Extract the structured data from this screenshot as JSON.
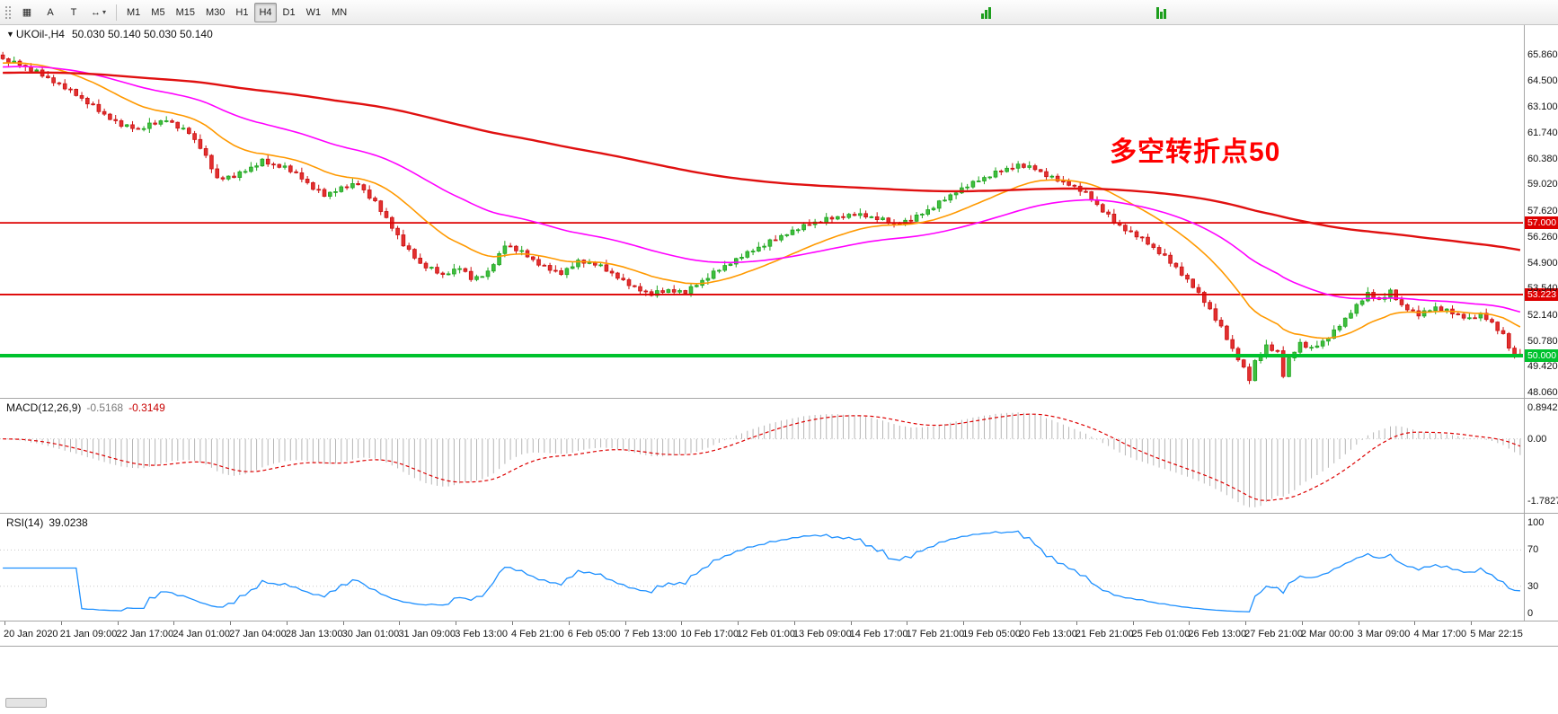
{
  "toolbar": {
    "left_icons": [
      {
        "name": "tile-windows-icon",
        "glyph": "▦"
      },
      {
        "name": "text-label-icon",
        "glyph": "A"
      },
      {
        "name": "trendline-tool-icon",
        "glyph": "T"
      },
      {
        "name": "indicators-icon",
        "glyph": "↔",
        "caret": "▾"
      }
    ],
    "timeframes": [
      "M1",
      "M5",
      "M15",
      "M30",
      "H1",
      "H4",
      "D1",
      "W1",
      "MN"
    ],
    "active_timeframe": "H4"
  },
  "main_chart": {
    "symbol_label": "UKOil-,H4",
    "ohlc_label": "50.030 50.140 50.030 50.140",
    "annotation": "多空转折点50"
  },
  "macd_panel": {
    "name_label": "MACD(12,26,9)",
    "value_main": "-0.5168",
    "value_signal": "-0.3149"
  },
  "rsi_panel": {
    "name_label": "RSI(14)",
    "value": "39.0238"
  },
  "colors": {
    "bull": "#1fa51f",
    "bull_fill": "#3fbf3f",
    "bear": "#cc1111",
    "bear_fill": "#e23030",
    "hist": "#b5b5b5",
    "signal": "#dd0000",
    "rsi_line": "#1e90ff",
    "level_dotted": "#c9c9c9",
    "annotation": "#ff0000"
  },
  "chart_data": {
    "type": "candlestick",
    "title": "UKOil-,H4",
    "symbol": "UKOil",
    "timeframe": "H4",
    "bars": 270,
    "y_axis": {
      "min": 48.06,
      "max": 65.86,
      "ticks": [
        {
          "v": 65.86,
          "label": "65.860"
        },
        {
          "v": 64.5,
          "label": "64.500"
        },
        {
          "v": 63.1,
          "label": "63.100"
        },
        {
          "v": 61.74,
          "label": "61.740"
        },
        {
          "v": 60.38,
          "label": "60.380"
        },
        {
          "v": 59.02,
          "label": "59.020"
        },
        {
          "v": 57.62,
          "label": "57.620"
        },
        {
          "v": 56.26,
          "label": "56.260"
        },
        {
          "v": 54.9,
          "label": "54.900"
        },
        {
          "v": 53.54,
          "label": "53.540"
        },
        {
          "v": 52.14,
          "label": "52.140"
        },
        {
          "v": 50.78,
          "label": "50.780"
        },
        {
          "v": 49.42,
          "label": "49.420"
        },
        {
          "v": 48.06,
          "label": "48.060"
        }
      ]
    },
    "x_axis": {
      "labels": [
        "20 Jan 2020",
        "21 Jan 09:00",
        "22 Jan 17:00",
        "24 Jan 01:00",
        "27 Jan 04:00",
        "28 Jan 13:00",
        "30 Jan 01:00",
        "31 Jan 09:00",
        "3 Feb 13:00",
        "4 Feb 21:00",
        "6 Feb 05:00",
        "7 Feb 13:00",
        "10 Feb 17:00",
        "12 Feb 01:00",
        "13 Feb 09:00",
        "14 Feb 17:00",
        "17 Feb 21:00",
        "19 Feb 05:00",
        "20 Feb 13:00",
        "21 Feb 21:00",
        "25 Feb 01:00",
        "26 Feb 13:00",
        "27 Feb 21:00",
        "2 Mar 00:00",
        "3 Mar 09:00",
        "4 Mar 17:00",
        "5 Mar 22:15"
      ]
    },
    "close_keypoints": [
      [
        0,
        65.6
      ],
      [
        3,
        65.35
      ],
      [
        6,
        64.95
      ],
      [
        9,
        64.45
      ],
      [
        12,
        63.95
      ],
      [
        15,
        63.35
      ],
      [
        18,
        62.7
      ],
      [
        21,
        62.15
      ],
      [
        24,
        61.95
      ],
      [
        27,
        62.25
      ],
      [
        29,
        62.45
      ],
      [
        31,
        62.05
      ],
      [
        33,
        61.75
      ],
      [
        35,
        61.0
      ],
      [
        38,
        59.35
      ],
      [
        41,
        59.45
      ],
      [
        43,
        59.75
      ],
      [
        46,
        60.25
      ],
      [
        48,
        60.05
      ],
      [
        50,
        59.95
      ],
      [
        53,
        59.35
      ],
      [
        55,
        58.85
      ],
      [
        57,
        58.45
      ],
      [
        60,
        58.85
      ],
      [
        63,
        59.05
      ],
      [
        66,
        58.05
      ],
      [
        68,
        57.25
      ],
      [
        71,
        55.85
      ],
      [
        74,
        54.85
      ],
      [
        78,
        54.25
      ],
      [
        81,
        54.65
      ],
      [
        83,
        54.05
      ],
      [
        86,
        54.35
      ],
      [
        89,
        55.85
      ],
      [
        92,
        55.45
      ],
      [
        96,
        54.65
      ],
      [
        99,
        54.35
      ],
      [
        102,
        54.95
      ],
      [
        105,
        54.85
      ],
      [
        109,
        54.15
      ],
      [
        112,
        53.55
      ],
      [
        115,
        53.25
      ],
      [
        118,
        53.45
      ],
      [
        121,
        53.35
      ],
      [
        124,
        53.95
      ],
      [
        127,
        54.55
      ],
      [
        131,
        55.25
      ],
      [
        135,
        55.85
      ],
      [
        139,
        56.45
      ],
      [
        143,
        56.95
      ],
      [
        147,
        57.25
      ],
      [
        151,
        57.45
      ],
      [
        155,
        57.25
      ],
      [
        158,
        56.95
      ],
      [
        161,
        57.15
      ],
      [
        165,
        57.85
      ],
      [
        169,
        58.65
      ],
      [
        173,
        59.25
      ],
      [
        177,
        59.75
      ],
      [
        180,
        60.05
      ],
      [
        183,
        59.85
      ],
      [
        186,
        59.35
      ],
      [
        189,
        59.05
      ],
      [
        192,
        58.55
      ],
      [
        195,
        57.65
      ],
      [
        197,
        57.05
      ],
      [
        199,
        56.65
      ],
      [
        202,
        56.15
      ],
      [
        205,
        55.45
      ],
      [
        208,
        54.65
      ],
      [
        211,
        53.65
      ],
      [
        214,
        52.45
      ],
      [
        216,
        51.45
      ],
      [
        218,
        50.35
      ],
      [
        220,
        49.35
      ],
      [
        221,
        48.75
      ],
      [
        222,
        49.65
      ],
      [
        224,
        50.55
      ],
      [
        226,
        50.15
      ],
      [
        227,
        48.95
      ],
      [
        228,
        49.85
      ],
      [
        230,
        50.65
      ],
      [
        232,
        50.35
      ],
      [
        234,
        50.75
      ],
      [
        236,
        51.25
      ],
      [
        238,
        51.95
      ],
      [
        240,
        52.65
      ],
      [
        242,
        53.25
      ],
      [
        244,
        52.95
      ],
      [
        246,
        53.35
      ],
      [
        248,
        52.65
      ],
      [
        251,
        52.15
      ],
      [
        254,
        52.55
      ],
      [
        257,
        52.25
      ],
      [
        260,
        51.95
      ],
      [
        262,
        52.15
      ],
      [
        264,
        51.75
      ],
      [
        266,
        51.05
      ],
      [
        267,
        50.45
      ],
      [
        268,
        50.05
      ],
      [
        269,
        50.1
      ]
    ],
    "jitter": [
      0.05,
      -0.06,
      0.09,
      -0.04,
      0.02,
      -0.08,
      0.11,
      -0.05,
      0.03,
      -0.07
    ],
    "wick_up": [
      0.16,
      0.06,
      0.24,
      0.1,
      0.04,
      0.19,
      0.08,
      0.13,
      0.27
    ],
    "wick_dn": [
      0.07,
      0.19,
      0.05,
      0.15,
      0.23,
      0.06,
      0.12,
      0.09,
      0.04,
      0.17,
      0.1
    ],
    "moving_averages": [
      {
        "name": "ma-fast",
        "period": 20,
        "seed": 65.4,
        "color": "#ff9900",
        "width": 1.6
      },
      {
        "name": "ma-mid",
        "period": 55,
        "seed": 65.2,
        "color": "#ff00ff",
        "width": 1.6
      },
      {
        "name": "ma-slow",
        "period": 220,
        "seed": 64.9,
        "color": "#e01010",
        "width": 2.4
      }
    ],
    "hlines": [
      {
        "price": 57.0,
        "badge": "57.000",
        "color": "#dd0000",
        "width": 1.8
      },
      {
        "price": 53.223,
        "badge": "53.223",
        "color": "#dd0000",
        "width": 1.8
      },
      {
        "price": 50.0,
        "badge": "50.000",
        "color": "#00c22e",
        "width": 4
      }
    ],
    "macd": {
      "fast": 12,
      "slow": 26,
      "signal": 9,
      "scale_max": 1.0,
      "scale_min": -2.0,
      "ticks": [
        {
          "v": 0.8942,
          "label": "0.8942"
        },
        {
          "v": 0,
          "label": "0.00"
        },
        {
          "v": -1.7827,
          "label": "-1.7827"
        }
      ]
    },
    "rsi": {
      "period": 14,
      "levels": [
        70,
        30
      ],
      "ticks": [
        {
          "v": 100,
          "label": "100"
        },
        {
          "v": 70,
          "label": "70"
        },
        {
          "v": 30,
          "label": "30"
        },
        {
          "v": 0,
          "label": "0"
        }
      ]
    }
  }
}
